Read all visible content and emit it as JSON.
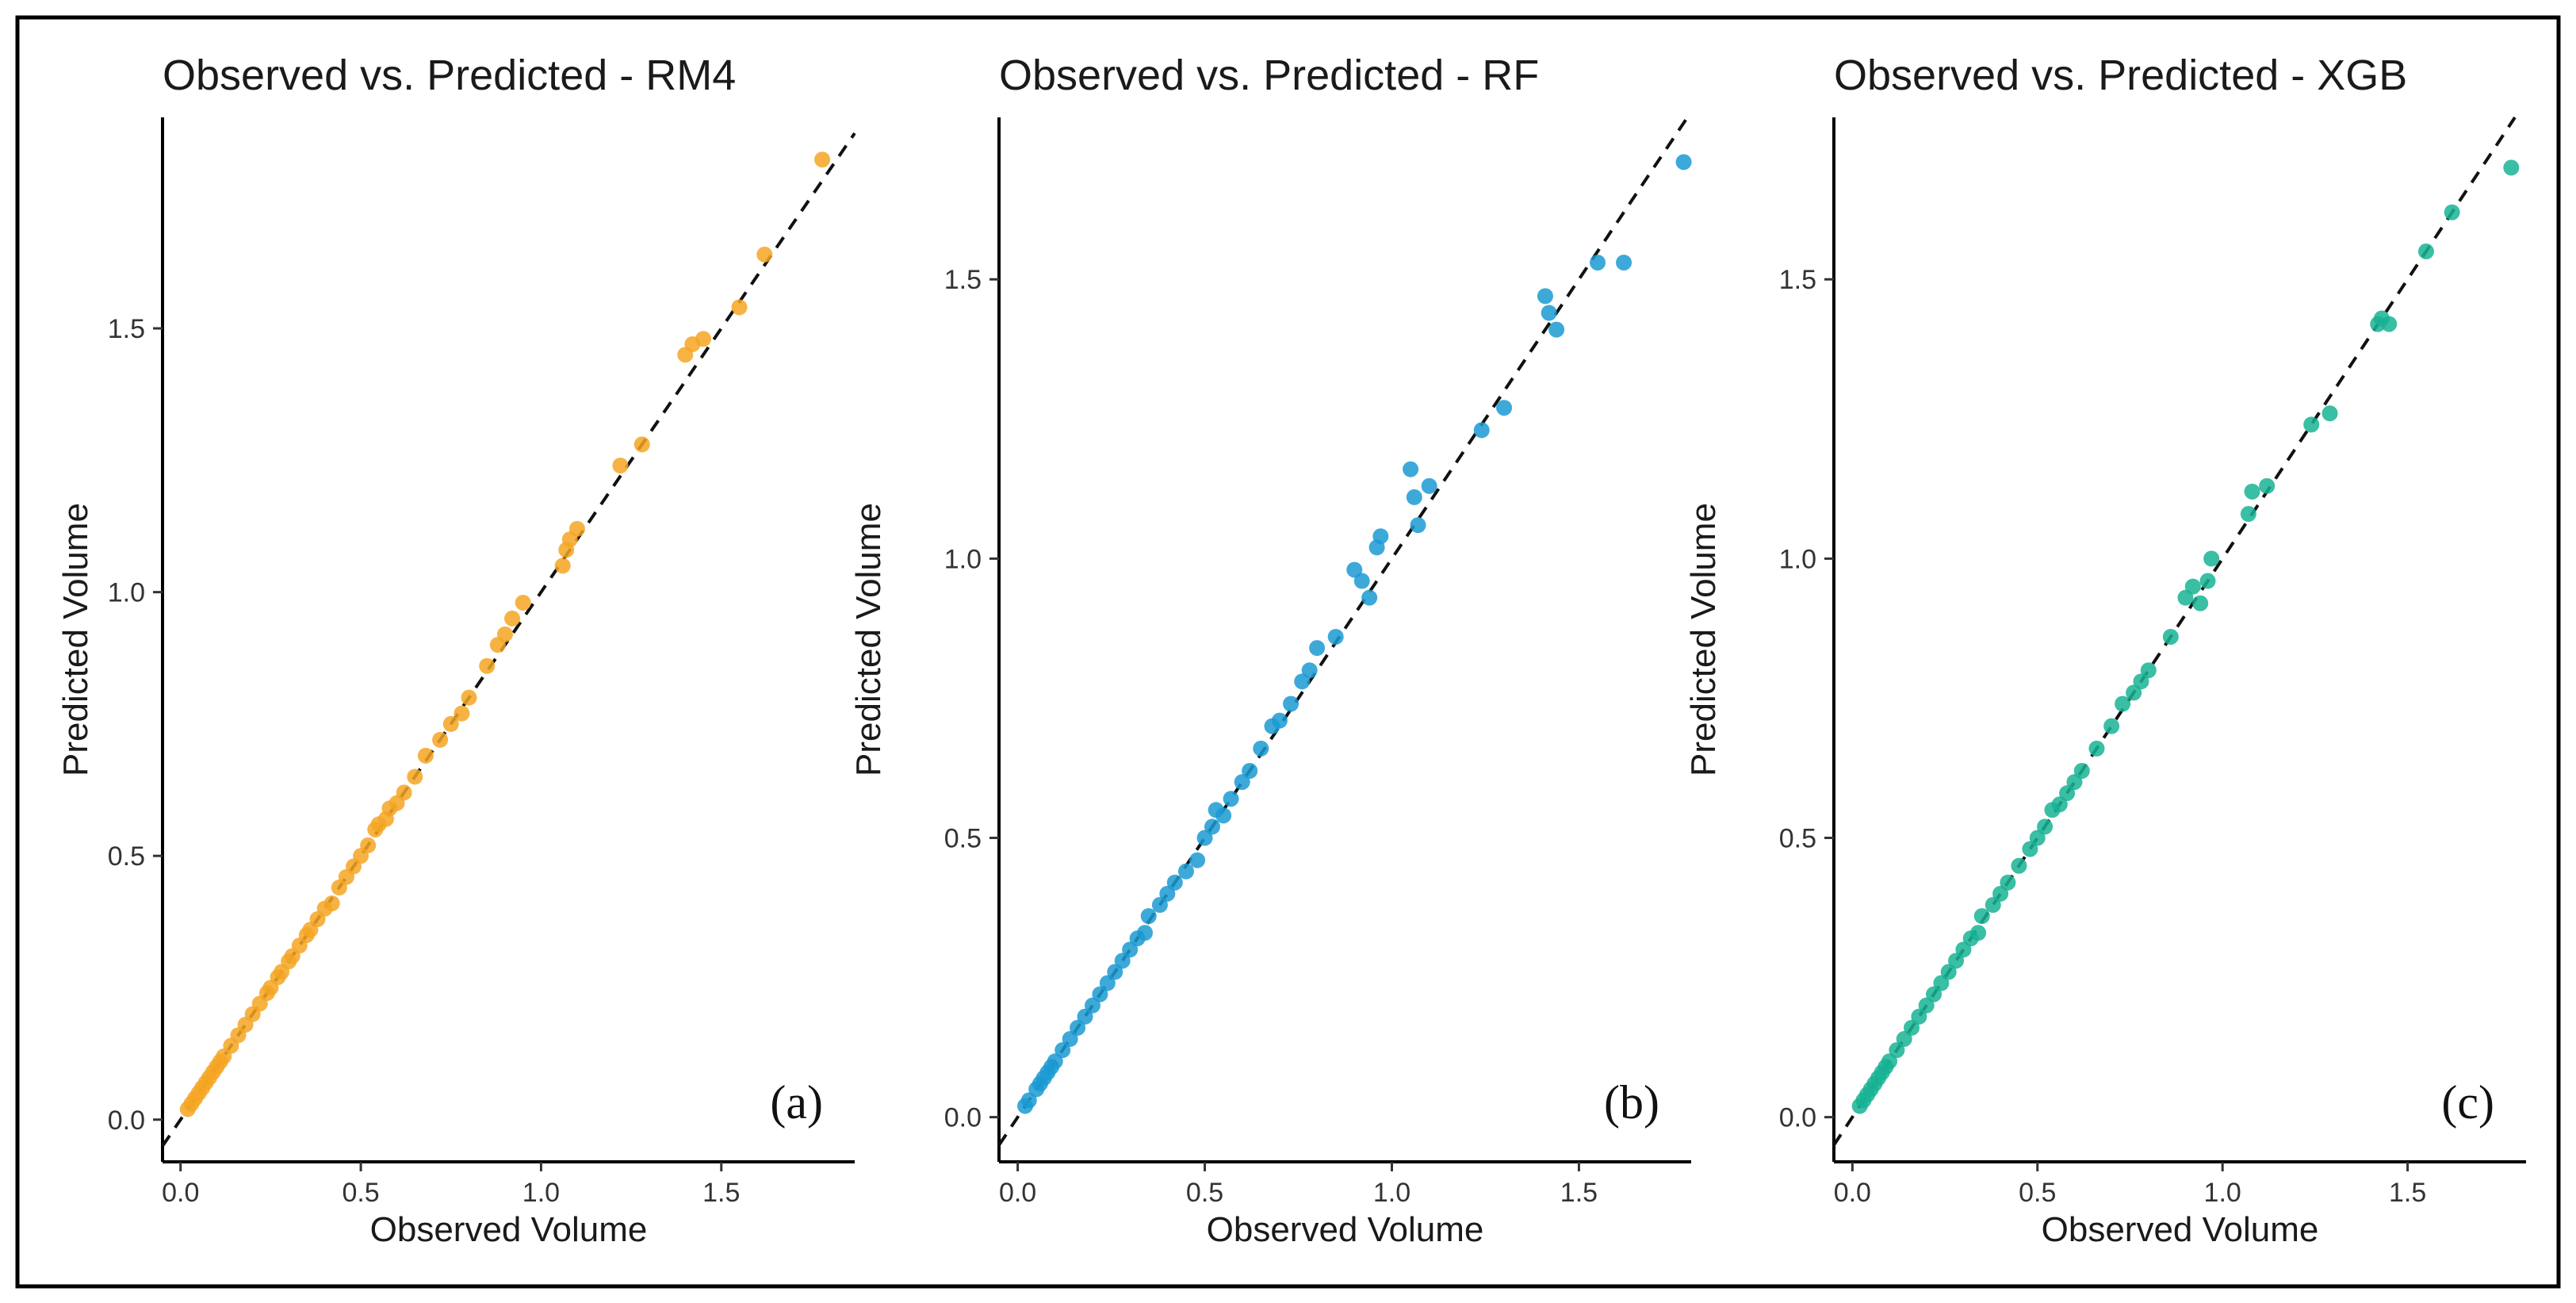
{
  "chart_data": [
    {
      "type": "scatter",
      "title": "Observed vs. Predicted - RM4",
      "xlabel": "Observed Volume",
      "ylabel": "Predicted Volume",
      "panel_label": "(a)",
      "color": "#F5A623",
      "xlim": [
        -0.05,
        1.87
      ],
      "ylim": [
        -0.08,
        1.9
      ],
      "xticks": [
        0.0,
        0.5,
        1.0,
        1.5
      ],
      "yticks": [
        0.0,
        0.5,
        1.0,
        1.5
      ],
      "xtick_labels": [
        "0.0",
        "0.5",
        "1.0",
        "1.5"
      ],
      "ytick_labels": [
        "0.0",
        "0.5",
        "1.0",
        "1.5"
      ],
      "reference_line": "y = x (dashed)",
      "series": [
        {
          "name": "RM4",
          "x": [
            0.02,
            0.03,
            0.04,
            0.05,
            0.06,
            0.07,
            0.08,
            0.09,
            0.1,
            0.11,
            0.12,
            0.14,
            0.16,
            0.18,
            0.2,
            0.22,
            0.24,
            0.25,
            0.27,
            0.28,
            0.3,
            0.31,
            0.33,
            0.35,
            0.36,
            0.38,
            0.4,
            0.42,
            0.44,
            0.46,
            0.48,
            0.5,
            0.52,
            0.54,
            0.55,
            0.57,
            0.58,
            0.6,
            0.62,
            0.65,
            0.68,
            0.72,
            0.75,
            0.78,
            0.8,
            0.85,
            0.88,
            0.9,
            0.92,
            0.95,
            1.06,
            1.07,
            1.08,
            1.1,
            1.22,
            1.28,
            1.4,
            1.42,
            1.45,
            1.55,
            1.62,
            1.78
          ],
          "y": [
            0.02,
            0.03,
            0.04,
            0.05,
            0.06,
            0.07,
            0.08,
            0.09,
            0.1,
            0.11,
            0.12,
            0.14,
            0.16,
            0.18,
            0.2,
            0.22,
            0.24,
            0.25,
            0.27,
            0.28,
            0.3,
            0.31,
            0.33,
            0.35,
            0.36,
            0.38,
            0.4,
            0.41,
            0.44,
            0.46,
            0.48,
            0.5,
            0.52,
            0.55,
            0.56,
            0.57,
            0.59,
            0.6,
            0.62,
            0.65,
            0.69,
            0.72,
            0.75,
            0.77,
            0.8,
            0.86,
            0.9,
            0.92,
            0.95,
            0.98,
            1.05,
            1.08,
            1.1,
            1.12,
            1.24,
            1.28,
            1.45,
            1.47,
            1.48,
            1.54,
            1.64,
            1.82
          ]
        }
      ]
    },
    {
      "type": "scatter",
      "title": "Observed vs. Predicted - RF",
      "xlabel": "Observed Volume",
      "ylabel": "Predicted Volume",
      "panel_label": "(b)",
      "color": "#1B9AD2",
      "xlim": [
        -0.05,
        1.8
      ],
      "ylim": [
        -0.08,
        1.79
      ],
      "xticks": [
        0.0,
        0.5,
        1.0,
        1.5
      ],
      "yticks": [
        0.0,
        0.5,
        1.0,
        1.5
      ],
      "xtick_labels": [
        "0.0",
        "0.5",
        "1.0",
        "1.5"
      ],
      "ytick_labels": [
        "0.0",
        "0.5",
        "1.0",
        "1.5"
      ],
      "reference_line": "y = x (dashed)",
      "series": [
        {
          "name": "RF",
          "x": [
            0.02,
            0.03,
            0.05,
            0.06,
            0.07,
            0.08,
            0.09,
            0.1,
            0.12,
            0.14,
            0.16,
            0.18,
            0.2,
            0.22,
            0.24,
            0.26,
            0.28,
            0.3,
            0.32,
            0.34,
            0.35,
            0.38,
            0.4,
            0.42,
            0.45,
            0.48,
            0.5,
            0.52,
            0.53,
            0.55,
            0.57,
            0.6,
            0.62,
            0.65,
            0.68,
            0.7,
            0.73,
            0.76,
            0.78,
            0.8,
            0.85,
            0.9,
            0.92,
            0.94,
            0.96,
            0.97,
            1.05,
            1.06,
            1.07,
            1.1,
            1.24,
            1.3,
            1.41,
            1.42,
            1.44,
            1.55,
            1.62,
            1.78
          ],
          "y": [
            0.02,
            0.03,
            0.05,
            0.06,
            0.07,
            0.08,
            0.09,
            0.1,
            0.12,
            0.14,
            0.16,
            0.18,
            0.2,
            0.22,
            0.24,
            0.26,
            0.28,
            0.3,
            0.32,
            0.33,
            0.36,
            0.38,
            0.4,
            0.42,
            0.44,
            0.46,
            0.5,
            0.52,
            0.55,
            0.54,
            0.57,
            0.6,
            0.62,
            0.66,
            0.7,
            0.71,
            0.74,
            0.78,
            0.8,
            0.84,
            0.86,
            0.98,
            0.96,
            0.93,
            1.02,
            1.04,
            1.16,
            1.11,
            1.06,
            1.13,
            1.23,
            1.27,
            1.47,
            1.44,
            1.41,
            1.53,
            1.53,
            1.71
          ]
        }
      ]
    },
    {
      "type": "scatter",
      "title": "Observed vs. Predicted - XGB",
      "xlabel": "Observed Volume",
      "ylabel": "Predicted Volume",
      "panel_label": "(c)",
      "color": "#17B394",
      "xlim": [
        -0.05,
        1.82
      ],
      "ylim": [
        -0.08,
        1.79
      ],
      "xticks": [
        0.0,
        0.5,
        1.0,
        1.5
      ],
      "yticks": [
        0.0,
        0.5,
        1.0,
        1.5
      ],
      "xtick_labels": [
        "0.0",
        "0.5",
        "1.0",
        "1.5"
      ],
      "ytick_labels": [
        "0.0",
        "0.5",
        "1.0",
        "1.5"
      ],
      "reference_line": "y = x (dashed)",
      "series": [
        {
          "name": "XGB",
          "x": [
            0.02,
            0.03,
            0.04,
            0.05,
            0.06,
            0.07,
            0.08,
            0.09,
            0.1,
            0.12,
            0.14,
            0.16,
            0.18,
            0.2,
            0.22,
            0.24,
            0.26,
            0.28,
            0.3,
            0.32,
            0.34,
            0.35,
            0.38,
            0.4,
            0.42,
            0.45,
            0.48,
            0.5,
            0.52,
            0.54,
            0.56,
            0.58,
            0.6,
            0.62,
            0.66,
            0.7,
            0.73,
            0.76,
            0.78,
            0.8,
            0.86,
            0.9,
            0.92,
            0.94,
            0.96,
            0.97,
            1.07,
            1.08,
            1.12,
            1.24,
            1.29,
            1.42,
            1.43,
            1.45,
            1.55,
            1.62,
            1.78
          ],
          "y": [
            0.02,
            0.03,
            0.04,
            0.05,
            0.06,
            0.07,
            0.08,
            0.09,
            0.1,
            0.12,
            0.14,
            0.16,
            0.18,
            0.2,
            0.22,
            0.24,
            0.26,
            0.28,
            0.3,
            0.32,
            0.33,
            0.36,
            0.38,
            0.4,
            0.42,
            0.45,
            0.48,
            0.5,
            0.52,
            0.55,
            0.56,
            0.58,
            0.6,
            0.62,
            0.66,
            0.7,
            0.74,
            0.76,
            0.78,
            0.8,
            0.86,
            0.93,
            0.95,
            0.92,
            0.96,
            1.0,
            1.08,
            1.12,
            1.13,
            1.24,
            1.26,
            1.42,
            1.43,
            1.42,
            1.55,
            1.62,
            1.7
          ]
        }
      ]
    }
  ]
}
